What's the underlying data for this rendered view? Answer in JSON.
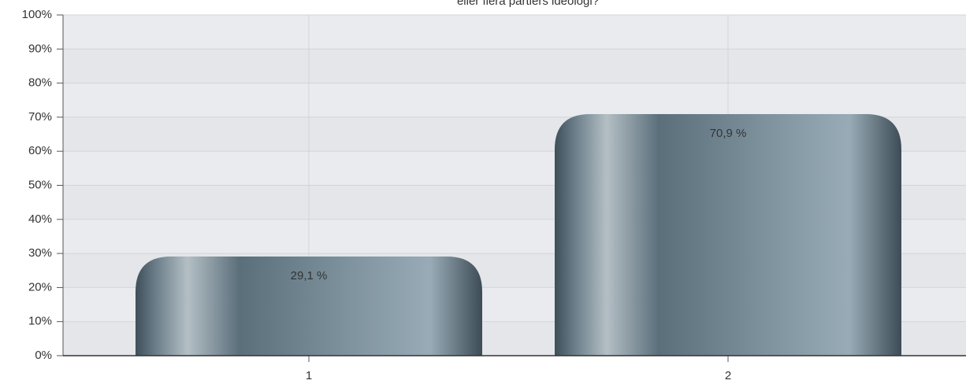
{
  "chart_data": {
    "type": "bar",
    "title": "eller flera partiers ideologi?",
    "categories": [
      "1",
      "2"
    ],
    "values": [
      29.1,
      70.9
    ],
    "value_labels": [
      "29,1 %",
      "70,9 %"
    ],
    "color": "#5e7583",
    "ylim": [
      0,
      100
    ],
    "yticks": [
      {
        "value": 0,
        "label": "0%"
      },
      {
        "value": 10,
        "label": "10%"
      },
      {
        "value": 20,
        "label": "20%"
      },
      {
        "value": 30,
        "label": "30%"
      },
      {
        "value": 40,
        "label": "40%"
      },
      {
        "value": 50,
        "label": "50%"
      },
      {
        "value": 60,
        "label": "60%"
      },
      {
        "value": 70,
        "label": "70%"
      },
      {
        "value": 80,
        "label": "80%"
      },
      {
        "value": 90,
        "label": "90%"
      },
      {
        "value": 100,
        "label": "100%"
      }
    ],
    "grid": true
  }
}
